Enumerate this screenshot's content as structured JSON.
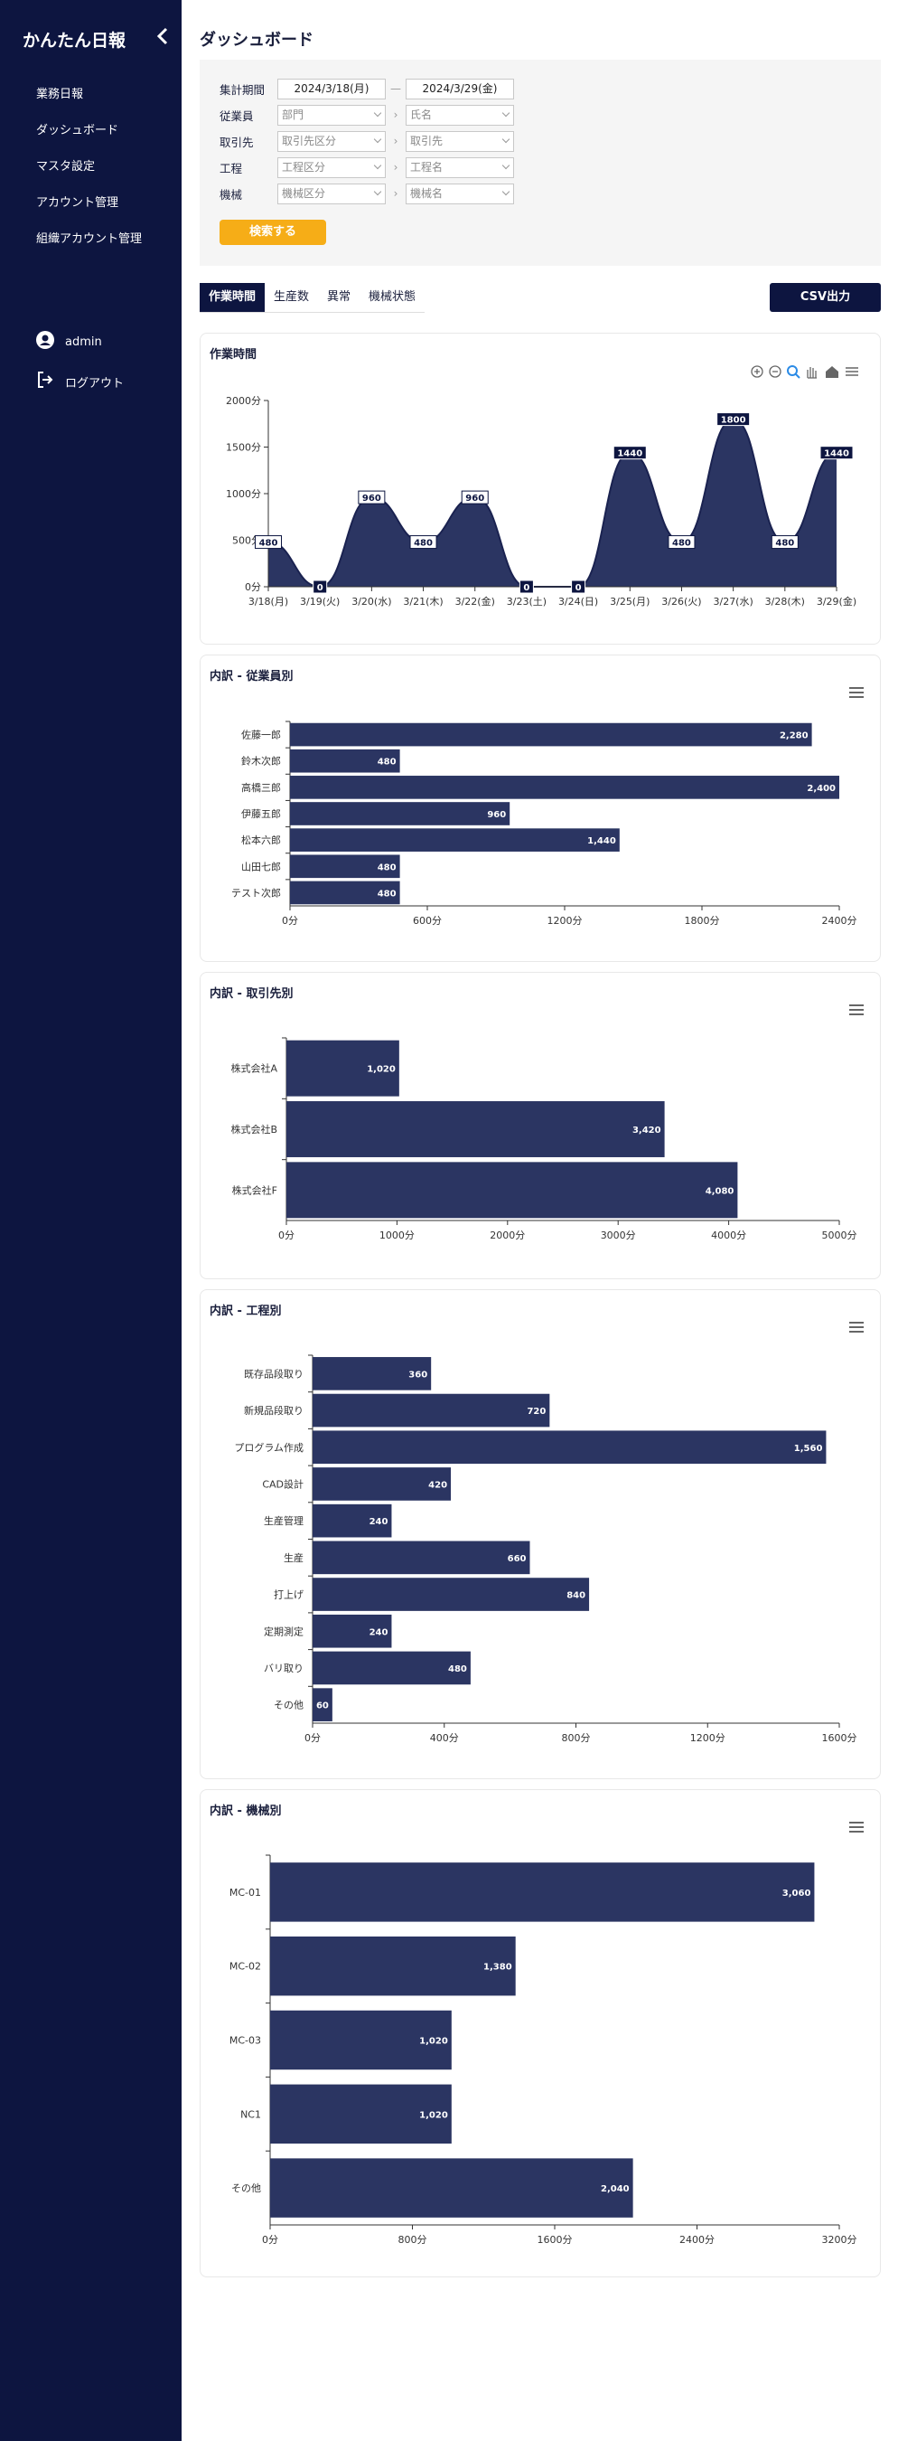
{
  "sidebar": {
    "app_title": "かんたん日報",
    "items": [
      {
        "label": "業務日報"
      },
      {
        "label": "ダッシュボード"
      },
      {
        "label": "マスタ設定"
      },
      {
        "label": "アカウント管理"
      },
      {
        "label": "組織アカウント管理"
      }
    ],
    "user": "admin",
    "logout": "ログアウト"
  },
  "page_title": "ダッシュボード",
  "filters": {
    "period_label": "集計期間",
    "date_from": "2024/3/18(月)",
    "range_sep": "—",
    "date_to": "2024/3/29(金)",
    "rows": [
      {
        "label": "従業員",
        "ph1": "部門",
        "ph2": "氏名"
      },
      {
        "label": "取引先",
        "ph1": "取引先区分",
        "ph2": "取引先"
      },
      {
        "label": "工程",
        "ph1": "工程区分",
        "ph2": "工程名"
      },
      {
        "label": "機械",
        "ph1": "機械区分",
        "ph2": "機械名"
      }
    ],
    "search_label": "検索する"
  },
  "tabs": [
    {
      "label": "作業時間"
    },
    {
      "label": "生産数"
    },
    {
      "label": "異常"
    },
    {
      "label": "機械状態"
    }
  ],
  "csv_label": "CSV出力",
  "colors": {
    "sidebar": "#0d1540",
    "accent": "#f6ad17",
    "series": "#2b3562"
  },
  "chart_data": [
    {
      "type": "area",
      "title": "作業時間",
      "unit": "分",
      "categories": [
        "3/18(月)",
        "3/19(火)",
        "3/20(水)",
        "3/21(木)",
        "3/22(金)",
        "3/23(土)",
        "3/24(日)",
        "3/25(月)",
        "3/26(火)",
        "3/27(水)",
        "3/28(木)",
        "3/29(金)"
      ],
      "values": [
        480,
        0,
        960,
        480,
        960,
        0,
        0,
        1440,
        480,
        1800,
        480,
        1440
      ],
      "ylim": [
        0,
        2000
      ],
      "yticks": [
        0,
        500,
        1000,
        1500,
        2000
      ],
      "grid": false
    },
    {
      "type": "bar",
      "orientation": "horizontal",
      "title": "内訳 - 従業員別",
      "unit": "分",
      "categories": [
        "佐藤一郎",
        "鈴木次郎",
        "高橋三郎",
        "伊藤五郎",
        "松本六郎",
        "山田七郎",
        "テスト次郎"
      ],
      "values": [
        2280,
        480,
        2400,
        960,
        1440,
        480,
        480
      ],
      "xlim": [
        0,
        2400
      ],
      "xticks": [
        0,
        600,
        1200,
        1800,
        2400
      ]
    },
    {
      "type": "bar",
      "orientation": "horizontal",
      "title": "内訳 - 取引先別",
      "unit": "分",
      "categories": [
        "株式会社A",
        "株式会社B",
        "株式会社F"
      ],
      "values": [
        1020,
        3420,
        4080
      ],
      "xlim": [
        0,
        5000
      ],
      "xticks": [
        0,
        1000,
        2000,
        3000,
        4000,
        5000
      ]
    },
    {
      "type": "bar",
      "orientation": "horizontal",
      "title": "内訳 - 工程別",
      "unit": "分",
      "categories": [
        "既存品段取り",
        "新規品段取り",
        "プログラム作成",
        "CAD設計",
        "生産管理",
        "生産",
        "打上げ",
        "定期測定",
        "バリ取り",
        "その他"
      ],
      "values": [
        360,
        720,
        1560,
        420,
        240,
        660,
        840,
        240,
        480,
        60
      ],
      "xlim": [
        0,
        1600
      ],
      "xticks": [
        0,
        400,
        800,
        1200,
        1600
      ]
    },
    {
      "type": "bar",
      "orientation": "horizontal",
      "title": "内訳 - 機械別",
      "unit": "分",
      "categories": [
        "MC-01",
        "MC-02",
        "MC-03",
        "NC1",
        "その他"
      ],
      "values": [
        3060,
        1380,
        1020,
        1020,
        2040
      ],
      "xlim": [
        0,
        3200
      ],
      "xticks": [
        0,
        800,
        1600,
        2400,
        3200
      ]
    }
  ]
}
